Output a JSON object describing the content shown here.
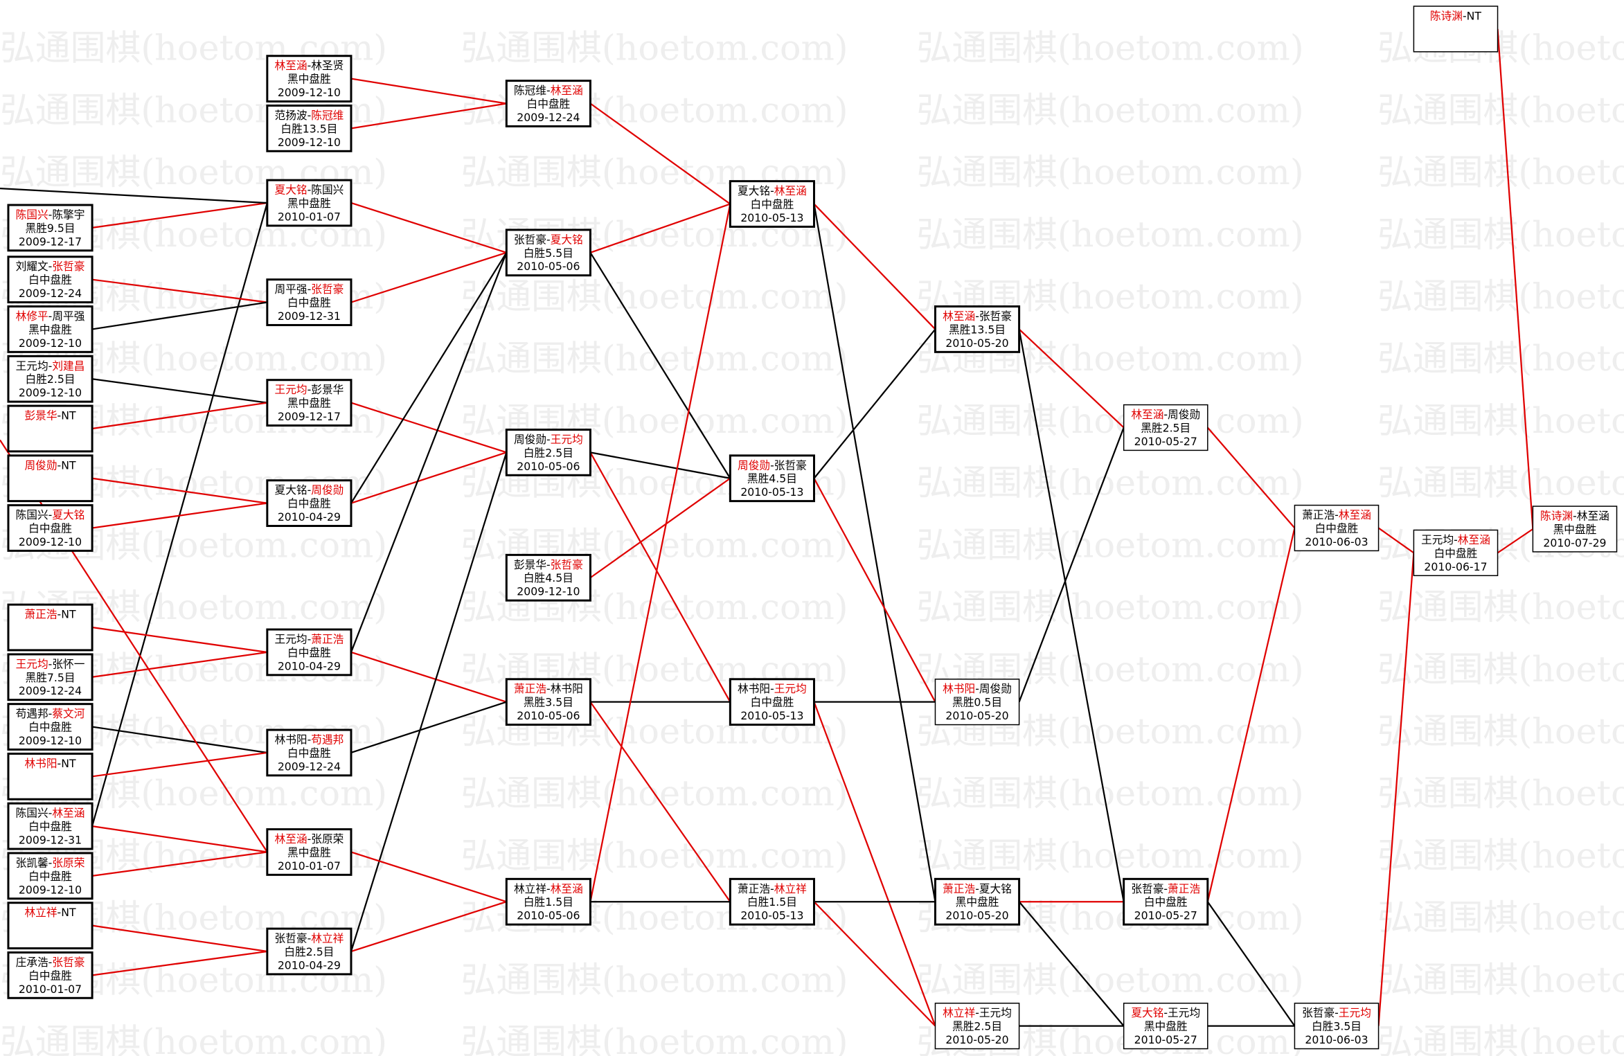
{
  "watermark": "弘通围棋(hoetom.com)",
  "separator": "-",
  "nodes": [
    {
      "players": [
        {
          "name": "陈国兴",
          "color": "#e00000"
        },
        {
          "name": "陈擎宇",
          "color": "#000000"
        }
      ],
      "result": "黑胜9.5目",
      "date": "2009-12-17"
    },
    {
      "players": [
        {
          "name": "刘耀文",
          "color": "#000000"
        },
        {
          "name": "张哲豪",
          "color": "#e00000"
        }
      ],
      "result": "白中盘胜",
      "date": "2009-12-24"
    },
    {
      "players": [
        {
          "name": "林修平",
          "color": "#e00000"
        },
        {
          "name": "周平强",
          "color": "#000000"
        }
      ],
      "result": "黑中盘胜",
      "date": "2009-12-10"
    },
    {
      "players": [
        {
          "name": "王元均",
          "color": "#000000"
        },
        {
          "name": "刘建昌",
          "color": "#e00000"
        }
      ],
      "result": "白胜2.5目",
      "date": "2009-12-10"
    },
    {
      "players": [
        {
          "name": "彭景华",
          "color": "#e00000"
        },
        {
          "name": "NT",
          "color": "#000000"
        }
      ]
    },
    {
      "players": [
        {
          "name": "周俊勋",
          "color": "#e00000"
        },
        {
          "name": "NT",
          "color": "#000000"
        }
      ]
    },
    {
      "players": [
        {
          "name": "陈国兴",
          "color": "#000000"
        },
        {
          "name": "夏大铭",
          "color": "#e00000"
        }
      ],
      "result": "白中盘胜",
      "date": "2009-12-10"
    },
    {
      "players": [
        {
          "name": "萧正浩",
          "color": "#e00000"
        },
        {
          "name": "NT",
          "color": "#000000"
        }
      ]
    },
    {
      "players": [
        {
          "name": "王元均",
          "color": "#e00000"
        },
        {
          "name": "张怀一",
          "color": "#000000"
        }
      ],
      "result": "黑胜7.5目",
      "date": "2009-12-24"
    },
    {
      "players": [
        {
          "name": "苟遇邦",
          "color": "#000000"
        },
        {
          "name": "蔡文河",
          "color": "#e00000"
        }
      ],
      "result": "白中盘胜",
      "date": "2009-12-10"
    },
    {
      "players": [
        {
          "name": "林书阳",
          "color": "#e00000"
        },
        {
          "name": "NT",
          "color": "#000000"
        }
      ]
    },
    {
      "players": [
        {
          "name": "陈国兴",
          "color": "#000000"
        },
        {
          "name": "林至涵",
          "color": "#e00000"
        }
      ],
      "result": "白中盘胜",
      "date": "2009-12-31"
    },
    {
      "players": [
        {
          "name": "张凯馨",
          "color": "#000000"
        },
        {
          "name": "张原荣",
          "color": "#e00000"
        }
      ],
      "result": "白中盘胜",
      "date": "2009-12-10"
    },
    {
      "players": [
        {
          "name": "林立祥",
          "color": "#e00000"
        },
        {
          "name": "NT",
          "color": "#000000"
        }
      ]
    },
    {
      "players": [
        {
          "name": "庄承浩",
          "color": "#000000"
        },
        {
          "name": "张哲豪",
          "color": "#e00000"
        }
      ],
      "result": "白中盘胜",
      "date": "2010-01-07"
    },
    {
      "players": [
        {
          "name": "林至涵",
          "color": "#e00000"
        },
        {
          "name": "林圣贤",
          "color": "#000000"
        }
      ],
      "result": "黑中盘胜",
      "date": "2009-12-10"
    },
    {
      "players": [
        {
          "name": "范扬波",
          "color": "#000000"
        },
        {
          "name": "陈冠维",
          "color": "#e00000"
        }
      ],
      "result": "白胜13.5目",
      "date": "2009-12-10"
    },
    {
      "players": [
        {
          "name": "夏大铭",
          "color": "#e00000"
        },
        {
          "name": "陈国兴",
          "color": "#000000"
        }
      ],
      "result": "黑中盘胜",
      "date": "2010-01-07"
    },
    {
      "players": [
        {
          "name": "周平强",
          "color": "#000000"
        },
        {
          "name": "张哲豪",
          "color": "#e00000"
        }
      ],
      "result": "白中盘胜",
      "date": "2009-12-31"
    },
    {
      "players": [
        {
          "name": "王元均",
          "color": "#e00000"
        },
        {
          "name": "彭景华",
          "color": "#000000"
        }
      ],
      "result": "黑中盘胜",
      "date": "2009-12-17"
    },
    {
      "players": [
        {
          "name": "夏大铭",
          "color": "#000000"
        },
        {
          "name": "周俊勋",
          "color": "#e00000"
        }
      ],
      "result": "白中盘胜",
      "date": "2010-04-29"
    },
    {
      "players": [
        {
          "name": "王元均",
          "color": "#000000"
        },
        {
          "name": "萧正浩",
          "color": "#e00000"
        }
      ],
      "result": "白中盘胜",
      "date": "2010-04-29"
    },
    {
      "players": [
        {
          "name": "林书阳",
          "color": "#000000"
        },
        {
          "name": "苟遇邦",
          "color": "#e00000"
        }
      ],
      "result": "白中盘胜",
      "date": "2009-12-24"
    },
    {
      "players": [
        {
          "name": "林至涵",
          "color": "#e00000"
        },
        {
          "name": "张原荣",
          "color": "#000000"
        }
      ],
      "result": "黑中盘胜",
      "date": "2010-01-07"
    },
    {
      "players": [
        {
          "name": "张哲豪",
          "color": "#000000"
        },
        {
          "name": "林立祥",
          "color": "#e00000"
        }
      ],
      "result": "白胜2.5目",
      "date": "2010-04-29"
    },
    {
      "players": [
        {
          "name": "陈冠维",
          "color": "#000000"
        },
        {
          "name": "林至涵",
          "color": "#e00000"
        }
      ],
      "result": "白中盘胜",
      "date": "2009-12-24"
    },
    {
      "players": [
        {
          "name": "张哲豪",
          "color": "#000000"
        },
        {
          "name": "夏大铭",
          "color": "#e00000"
        }
      ],
      "result": "白胜5.5目",
      "date": "2010-05-06"
    },
    {
      "players": [
        {
          "name": "周俊勋",
          "color": "#000000"
        },
        {
          "name": "王元均",
          "color": "#e00000"
        }
      ],
      "result": "白胜2.5目",
      "date": "2010-05-06"
    },
    {
      "players": [
        {
          "name": "彭景华",
          "color": "#000000"
        },
        {
          "name": "张哲豪",
          "color": "#e00000"
        }
      ],
      "result": "白胜4.5目",
      "date": "2009-12-10"
    },
    {
      "players": [
        {
          "name": "萧正浩",
          "color": "#e00000"
        },
        {
          "name": "林书阳",
          "color": "#000000"
        }
      ],
      "result": "黑胜3.5目",
      "date": "2010-05-06"
    },
    {
      "players": [
        {
          "name": "林立祥",
          "color": "#000000"
        },
        {
          "name": "林至涵",
          "color": "#e00000"
        }
      ],
      "result": "白胜1.5目",
      "date": "2010-05-06"
    },
    {
      "players": [
        {
          "name": "夏大铭",
          "color": "#000000"
        },
        {
          "name": "林至涵",
          "color": "#e00000"
        }
      ],
      "result": "白中盘胜",
      "date": "2010-05-13"
    },
    {
      "players": [
        {
          "name": "周俊勋",
          "color": "#e00000"
        },
        {
          "name": "张哲豪",
          "color": "#000000"
        }
      ],
      "result": "黑胜4.5目",
      "date": "2010-05-13"
    },
    {
      "players": [
        {
          "name": "林书阳",
          "color": "#000000"
        },
        {
          "name": "王元均",
          "color": "#e00000"
        }
      ],
      "result": "白中盘胜",
      "date": "2010-05-13"
    },
    {
      "players": [
        {
          "name": "萧正浩",
          "color": "#000000"
        },
        {
          "name": "林立祥",
          "color": "#e00000"
        }
      ],
      "result": "白胜1.5目",
      "date": "2010-05-13"
    },
    {
      "players": [
        {
          "name": "林至涵",
          "color": "#e00000"
        },
        {
          "name": "张哲豪",
          "color": "#000000"
        }
      ],
      "result": "黑胜13.5目",
      "date": "2010-05-20"
    },
    {
      "players": [
        {
          "name": "林书阳",
          "color": "#e00000"
        },
        {
          "name": "周俊勋",
          "color": "#000000"
        }
      ],
      "result": "黑胜0.5目",
      "date": "2010-05-20"
    },
    {
      "players": [
        {
          "name": "萧正浩",
          "color": "#e00000"
        },
        {
          "name": "夏大铭",
          "color": "#000000"
        }
      ],
      "result": "黑中盘胜",
      "date": "2010-05-20"
    },
    {
      "players": [
        {
          "name": "林立祥",
          "color": "#e00000"
        },
        {
          "name": "王元均",
          "color": "#000000"
        }
      ],
      "result": "黑胜2.5目",
      "date": "2010-05-20"
    },
    {
      "players": [
        {
          "name": "林至涵",
          "color": "#e00000"
        },
        {
          "name": "周俊勋",
          "color": "#000000"
        }
      ],
      "result": "黑胜2.5目",
      "date": "2010-05-27"
    },
    {
      "players": [
        {
          "name": "张哲豪",
          "color": "#000000"
        },
        {
          "name": "萧正浩",
          "color": "#e00000"
        }
      ],
      "result": "白中盘胜",
      "date": "2010-05-27"
    },
    {
      "players": [
        {
          "name": "夏大铭",
          "color": "#e00000"
        },
        {
          "name": "王元均",
          "color": "#000000"
        }
      ],
      "result": "黑中盘胜",
      "date": "2010-05-27"
    },
    {
      "players": [
        {
          "name": "萧正浩",
          "color": "#000000"
        },
        {
          "name": "林至涵",
          "color": "#e00000"
        }
      ],
      "result": "白中盘胜",
      "date": "2010-06-03"
    },
    {
      "players": [
        {
          "name": "张哲豪",
          "color": "#000000"
        },
        {
          "name": "王元均",
          "color": "#e00000"
        }
      ],
      "result": "白胜3.5目",
      "date": "2010-06-03"
    },
    {
      "players": [
        {
          "name": "王元均",
          "color": "#000000"
        },
        {
          "name": "林至涵",
          "color": "#e00000"
        }
      ],
      "result": "白中盘胜",
      "date": "2010-06-17"
    },
    {
      "players": [
        {
          "name": "陈诗渊",
          "color": "#e00000"
        },
        {
          "name": "NT",
          "color": "#000000"
        }
      ]
    },
    {
      "players": [
        {
          "name": "陈诗渊",
          "color": "#e00000"
        },
        {
          "name": "林至涵",
          "color": "#000000"
        }
      ],
      "result": "黑中盘胜",
      "date": "2010-07-29"
    }
  ]
}
